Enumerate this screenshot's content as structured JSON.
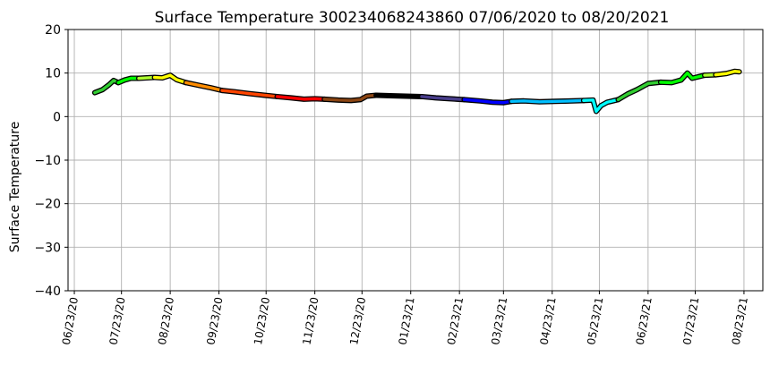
{
  "chart_data": {
    "type": "line",
    "title": "Surface Temperature 300234068243860  07/06/2020 to 08/20/2021",
    "ylabel": "Surface Temperature",
    "xlabel": "",
    "ylim": [
      -40,
      20
    ],
    "yticks": [
      -40,
      -30,
      -20,
      -10,
      0,
      10,
      20
    ],
    "xlim": [
      "2020-06-19",
      "2021-09-04"
    ],
    "xticks": [
      {
        "date": "2020-06-23",
        "label": "06/23/20"
      },
      {
        "date": "2020-07-23",
        "label": "07/23/20"
      },
      {
        "date": "2020-08-23",
        "label": "08/23/20"
      },
      {
        "date": "2020-09-23",
        "label": "09/23/20"
      },
      {
        "date": "2020-10-23",
        "label": "10/23/20"
      },
      {
        "date": "2020-11-23",
        "label": "11/23/20"
      },
      {
        "date": "2020-12-23",
        "label": "12/23/20"
      },
      {
        "date": "2021-01-23",
        "label": "01/23/21"
      },
      {
        "date": "2021-02-23",
        "label": "02/23/21"
      },
      {
        "date": "2021-03-23",
        "label": "03/23/21"
      },
      {
        "date": "2021-04-23",
        "label": "04/23/21"
      },
      {
        "date": "2021-05-23",
        "label": "05/23/21"
      },
      {
        "date": "2021-06-23",
        "label": "06/23/21"
      },
      {
        "date": "2021-07-23",
        "label": "07/23/21"
      },
      {
        "date": "2021-08-23",
        "label": "08/23/21"
      }
    ],
    "grid": true,
    "legend": "none",
    "series": [
      {
        "color": "#32cd32",
        "points": [
          [
            "2020-07-06",
            5.5
          ],
          [
            "2020-07-11",
            6.2
          ],
          [
            "2020-07-15",
            7.3
          ],
          [
            "2020-07-18",
            8.3
          ],
          [
            "2020-07-21",
            7.8
          ]
        ]
      },
      {
        "color": "#00ff00",
        "points": [
          [
            "2020-07-21",
            7.8
          ],
          [
            "2020-07-25",
            8.4
          ],
          [
            "2020-07-29",
            8.8
          ],
          [
            "2020-08-03",
            8.8
          ]
        ]
      },
      {
        "color": "#adff2f",
        "points": [
          [
            "2020-08-03",
            8.8
          ],
          [
            "2020-08-08",
            8.9
          ],
          [
            "2020-08-13",
            9.0
          ]
        ]
      },
      {
        "color": "#ffff00",
        "points": [
          [
            "2020-08-13",
            9.0
          ],
          [
            "2020-08-18",
            8.9
          ],
          [
            "2020-08-23",
            9.5
          ],
          [
            "2020-08-27",
            8.5
          ],
          [
            "2020-09-02",
            7.8
          ]
        ]
      },
      {
        "color": "#ff8c00",
        "points": [
          [
            "2020-09-02",
            7.8
          ],
          [
            "2020-09-10",
            7.2
          ],
          [
            "2020-09-18",
            6.6
          ],
          [
            "2020-09-25",
            6.0
          ]
        ]
      },
      {
        "color": "#ff4500",
        "points": [
          [
            "2020-09-25",
            6.0
          ],
          [
            "2020-10-03",
            5.7
          ],
          [
            "2020-10-12",
            5.3
          ],
          [
            "2020-10-22",
            4.9
          ],
          [
            "2020-10-30",
            4.6
          ]
        ]
      },
      {
        "color": "#ff0000",
        "points": [
          [
            "2020-10-30",
            4.6
          ],
          [
            "2020-11-08",
            4.3
          ],
          [
            "2020-11-16",
            4.0
          ],
          [
            "2020-11-23",
            4.1
          ],
          [
            "2020-11-29",
            4.0
          ]
        ]
      },
      {
        "color": "#8b4513",
        "points": [
          [
            "2020-11-29",
            4.0
          ],
          [
            "2020-12-08",
            3.8
          ],
          [
            "2020-12-16",
            3.7
          ],
          [
            "2020-12-22",
            3.9
          ],
          [
            "2020-12-26",
            4.7
          ],
          [
            "2021-01-01",
            4.9
          ]
        ]
      },
      {
        "color": "#000000",
        "points": [
          [
            "2021-01-01",
            4.9
          ],
          [
            "2021-01-10",
            4.8
          ],
          [
            "2021-01-20",
            4.7
          ],
          [
            "2021-01-30",
            4.6
          ]
        ]
      },
      {
        "color": "#483d8b",
        "points": [
          [
            "2021-01-30",
            4.6
          ],
          [
            "2021-02-08",
            4.3
          ],
          [
            "2021-02-17",
            4.1
          ],
          [
            "2021-02-26",
            3.9
          ]
        ]
      },
      {
        "color": "#0000ff",
        "points": [
          [
            "2021-02-26",
            3.9
          ],
          [
            "2021-03-08",
            3.6
          ],
          [
            "2021-03-16",
            3.3
          ],
          [
            "2021-03-23",
            3.2
          ],
          [
            "2021-03-28",
            3.5
          ]
        ]
      },
      {
        "color": "#00bfff",
        "points": [
          [
            "2021-03-28",
            3.5
          ],
          [
            "2021-04-05",
            3.6
          ],
          [
            "2021-04-15",
            3.4
          ],
          [
            "2021-04-25",
            3.5
          ],
          [
            "2021-05-06",
            3.6
          ],
          [
            "2021-05-13",
            3.7
          ]
        ]
      },
      {
        "color": "#00ffff",
        "points": [
          [
            "2021-05-13",
            3.7
          ],
          [
            "2021-05-19",
            3.8
          ],
          [
            "2021-05-21",
            1.2
          ],
          [
            "2021-05-24",
            2.5
          ],
          [
            "2021-05-28",
            3.3
          ],
          [
            "2021-06-04",
            3.9
          ]
        ]
      },
      {
        "color": "#32cd32",
        "points": [
          [
            "2021-06-04",
            3.9
          ],
          [
            "2021-06-10",
            5.2
          ],
          [
            "2021-06-16",
            6.2
          ],
          [
            "2021-06-23",
            7.6
          ],
          [
            "2021-07-01",
            7.9
          ]
        ]
      },
      {
        "color": "#00ff00",
        "points": [
          [
            "2021-07-01",
            7.9
          ],
          [
            "2021-07-08",
            7.8
          ],
          [
            "2021-07-14",
            8.4
          ],
          [
            "2021-07-18",
            10.0
          ],
          [
            "2021-07-21",
            8.8
          ],
          [
            "2021-07-29",
            9.5
          ]
        ]
      },
      {
        "color": "#adff2f",
        "points": [
          [
            "2021-07-29",
            9.5
          ],
          [
            "2021-08-05",
            9.6
          ]
        ]
      },
      {
        "color": "#ffff00",
        "points": [
          [
            "2021-08-05",
            9.6
          ],
          [
            "2021-08-12",
            9.9
          ],
          [
            "2021-08-17",
            10.4
          ],
          [
            "2021-08-20",
            10.3
          ]
        ]
      }
    ]
  }
}
